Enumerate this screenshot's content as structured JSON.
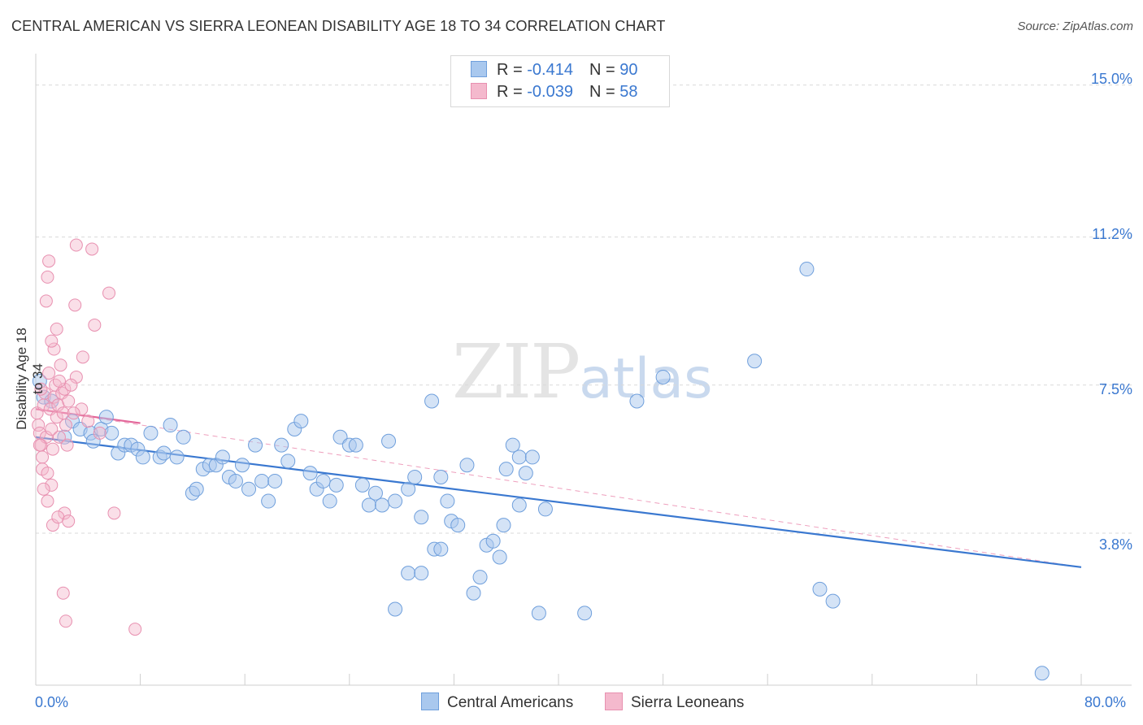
{
  "title": "CENTRAL AMERICAN VS SIERRA LEONEAN DISABILITY AGE 18 TO 34 CORRELATION CHART",
  "source": "Source: ZipAtlas.com",
  "watermark": {
    "zip": "ZIP",
    "atlas": "atlas"
  },
  "legend": {
    "row1": {
      "r_label": "R = ",
      "r_value": "-0.414",
      "n_label": "N = ",
      "n_value": "90"
    },
    "row2": {
      "r_label": "R = ",
      "r_value": "-0.039",
      "n_label": "N = ",
      "n_value": "58"
    }
  },
  "bottom_legend": {
    "series1": "Central Americans",
    "series2": "Sierra Leoneans"
  },
  "colors": {
    "blue": "#3a78d0",
    "blue_fill": "#a9c8ee",
    "pink": "#e3679a",
    "pink_fill": "#f4b9cd",
    "grid": "#d9d9d9"
  },
  "chart_data": {
    "type": "scatter",
    "title": "CENTRAL AMERICAN VS SIERRA LEONEAN DISABILITY AGE 18 TO 34 CORRELATION CHART",
    "xlabel": "",
    "ylabel": "Disability Age 18 to 34",
    "xlim": [
      0,
      80
    ],
    "ylim": [
      0,
      15.5
    ],
    "x_tick_labels": [
      "0.0%",
      "80.0%"
    ],
    "y_ticks": [
      3.8,
      7.5,
      11.2,
      15.0
    ],
    "y_tick_labels": [
      "3.8%",
      "7.5%",
      "11.2%",
      "15.0%"
    ],
    "series": [
      {
        "name": "Central Americans",
        "r": -0.414,
        "n": 90,
        "trend": {
          "x": [
            0,
            80
          ],
          "y": [
            6.2,
            2.95
          ]
        },
        "points": [
          [
            0.3,
            7.6
          ],
          [
            0.6,
            7.2
          ],
          [
            1.2,
            7.1
          ],
          [
            2.2,
            6.2
          ],
          [
            2.8,
            6.6
          ],
          [
            3.4,
            6.4
          ],
          [
            4.2,
            6.3
          ],
          [
            4.4,
            6.1
          ],
          [
            5.0,
            6.4
          ],
          [
            5.4,
            6.7
          ],
          [
            5.8,
            6.3
          ],
          [
            6.3,
            5.8
          ],
          [
            6.8,
            6.0
          ],
          [
            7.3,
            6.0
          ],
          [
            7.8,
            5.9
          ],
          [
            8.2,
            5.7
          ],
          [
            8.8,
            6.3
          ],
          [
            9.5,
            5.7
          ],
          [
            9.8,
            5.8
          ],
          [
            10.3,
            6.5
          ],
          [
            10.8,
            5.7
          ],
          [
            11.3,
            6.2
          ],
          [
            12.0,
            4.8
          ],
          [
            12.3,
            4.9
          ],
          [
            12.8,
            5.4
          ],
          [
            13.3,
            5.5
          ],
          [
            13.8,
            5.5
          ],
          [
            14.3,
            5.7
          ],
          [
            14.8,
            5.2
          ],
          [
            15.3,
            5.1
          ],
          [
            15.8,
            5.5
          ],
          [
            16.3,
            4.9
          ],
          [
            16.8,
            6.0
          ],
          [
            17.3,
            5.1
          ],
          [
            17.8,
            4.6
          ],
          [
            18.3,
            5.1
          ],
          [
            18.8,
            6.0
          ],
          [
            19.3,
            5.6
          ],
          [
            19.8,
            6.4
          ],
          [
            20.3,
            6.6
          ],
          [
            21.0,
            5.3
          ],
          [
            21.5,
            4.9
          ],
          [
            22.0,
            5.1
          ],
          [
            22.5,
            4.6
          ],
          [
            23.0,
            5.0
          ],
          [
            23.3,
            6.2
          ],
          [
            24.0,
            6.0
          ],
          [
            24.5,
            6.0
          ],
          [
            25.0,
            5.0
          ],
          [
            25.5,
            4.5
          ],
          [
            26.0,
            4.8
          ],
          [
            26.5,
            4.5
          ],
          [
            27.0,
            6.1
          ],
          [
            27.5,
            4.6
          ],
          [
            28.5,
            4.9
          ],
          [
            29.0,
            5.2
          ],
          [
            29.5,
            4.2
          ],
          [
            30.3,
            7.1
          ],
          [
            30.5,
            3.4
          ],
          [
            31.0,
            5.2
          ],
          [
            31.5,
            4.6
          ],
          [
            31.8,
            4.1
          ],
          [
            32.3,
            4.0
          ],
          [
            33.0,
            5.5
          ],
          [
            33.5,
            2.3
          ],
          [
            34.0,
            2.7
          ],
          [
            34.5,
            3.5
          ],
          [
            35.0,
            3.6
          ],
          [
            35.5,
            3.2
          ],
          [
            36.0,
            5.4
          ],
          [
            36.5,
            6.0
          ],
          [
            37.0,
            5.7
          ],
          [
            37.5,
            5.3
          ],
          [
            38.0,
            5.7
          ],
          [
            35.8,
            4.0
          ],
          [
            31.0,
            3.4
          ],
          [
            27.5,
            1.9
          ],
          [
            28.5,
            2.8
          ],
          [
            29.5,
            2.8
          ],
          [
            37.0,
            4.5
          ],
          [
            39.0,
            4.4
          ],
          [
            42.0,
            1.8
          ],
          [
            46.0,
            7.1
          ],
          [
            48.0,
            7.7
          ],
          [
            55.0,
            8.1
          ],
          [
            59.0,
            10.4
          ],
          [
            60.0,
            2.4
          ],
          [
            61.0,
            2.1
          ],
          [
            77.0,
            0.3
          ],
          [
            38.5,
            1.8
          ]
        ]
      },
      {
        "name": "Sierra Leoneans",
        "r": -0.039,
        "n": 58,
        "trend": {
          "x": [
            0,
            8
          ],
          "y": [
            6.9,
            6.55
          ]
        },
        "trend_extended": {
          "x": [
            0,
            80
          ],
          "y": [
            6.9,
            2.95
          ]
        },
        "points": [
          [
            0.1,
            6.8
          ],
          [
            0.2,
            6.5
          ],
          [
            0.3,
            6.3
          ],
          [
            0.4,
            6.0
          ],
          [
            0.5,
            5.7
          ],
          [
            0.5,
            5.4
          ],
          [
            0.6,
            7.0
          ],
          [
            0.7,
            7.3
          ],
          [
            0.8,
            6.2
          ],
          [
            0.9,
            5.3
          ],
          [
            1.0,
            7.8
          ],
          [
            1.1,
            6.9
          ],
          [
            1.2,
            6.4
          ],
          [
            1.3,
            5.9
          ],
          [
            1.4,
            7.2
          ],
          [
            1.5,
            7.5
          ],
          [
            1.6,
            6.7
          ],
          [
            1.7,
            7.0
          ],
          [
            1.8,
            6.2
          ],
          [
            1.9,
            8.0
          ],
          [
            2.0,
            7.3
          ],
          [
            2.1,
            6.8
          ],
          [
            2.2,
            7.4
          ],
          [
            2.3,
            6.5
          ],
          [
            2.4,
            6.0
          ],
          [
            2.5,
            7.1
          ],
          [
            0.8,
            9.6
          ],
          [
            0.9,
            10.2
          ],
          [
            1.0,
            10.6
          ],
          [
            1.6,
            8.9
          ],
          [
            1.4,
            8.4
          ],
          [
            1.2,
            8.6
          ],
          [
            3.0,
            9.5
          ],
          [
            3.1,
            11.0
          ],
          [
            4.3,
            10.9
          ],
          [
            5.6,
            9.8
          ],
          [
            4.5,
            9.0
          ],
          [
            3.6,
            8.2
          ],
          [
            3.1,
            7.7
          ],
          [
            2.7,
            7.5
          ],
          [
            2.2,
            4.3
          ],
          [
            1.3,
            4.0
          ],
          [
            1.2,
            5.0
          ],
          [
            0.9,
            4.6
          ],
          [
            1.7,
            4.2
          ],
          [
            2.5,
            4.1
          ],
          [
            6.0,
            4.3
          ],
          [
            2.1,
            2.3
          ],
          [
            2.3,
            1.6
          ],
          [
            7.6,
            1.4
          ],
          [
            4.0,
            6.6
          ],
          [
            4.9,
            6.3
          ],
          [
            3.5,
            6.9
          ],
          [
            0.3,
            6.0
          ],
          [
            0.4,
            7.4
          ],
          [
            1.8,
            7.6
          ],
          [
            2.9,
            6.8
          ],
          [
            0.6,
            4.9
          ]
        ]
      }
    ]
  }
}
